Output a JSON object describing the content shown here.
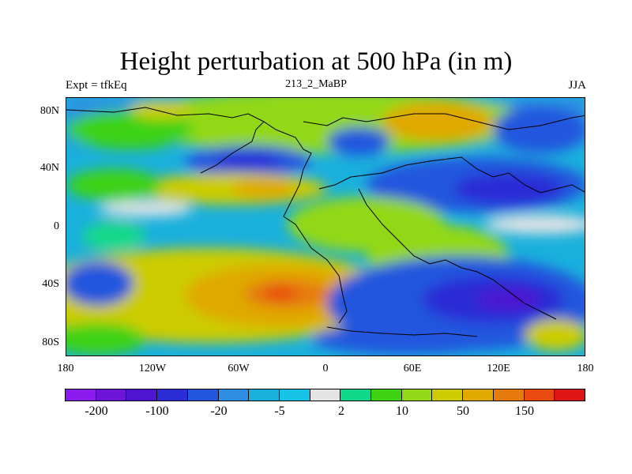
{
  "title": "Height perturbation at 500 hPa (in m)",
  "left_label": "Expt = tfkEq",
  "center_label": "213_2_MaBP",
  "right_label": "JJA",
  "axes": {
    "lat_ticks": [
      "80N",
      "40N",
      "0",
      "40S",
      "80S"
    ],
    "lon_ticks": [
      "180",
      "120W",
      "60W",
      "0",
      "60E",
      "120E",
      "180"
    ]
  },
  "colorbar": {
    "colors": [
      "#8d1aee",
      "#6e14d8",
      "#4e14d2",
      "#2a2cd6",
      "#2356de",
      "#2e8ee3",
      "#1ab0dc",
      "#16c3e6",
      "#e4e4e4",
      "#12d98a",
      "#3ed212",
      "#93d816",
      "#cccc00",
      "#e0a800",
      "#e67a0c",
      "#e84a10",
      "#e01414"
    ],
    "labels": [
      "-200",
      "-100",
      "-20",
      "-5",
      "2",
      "10",
      "50",
      "150"
    ]
  }
}
